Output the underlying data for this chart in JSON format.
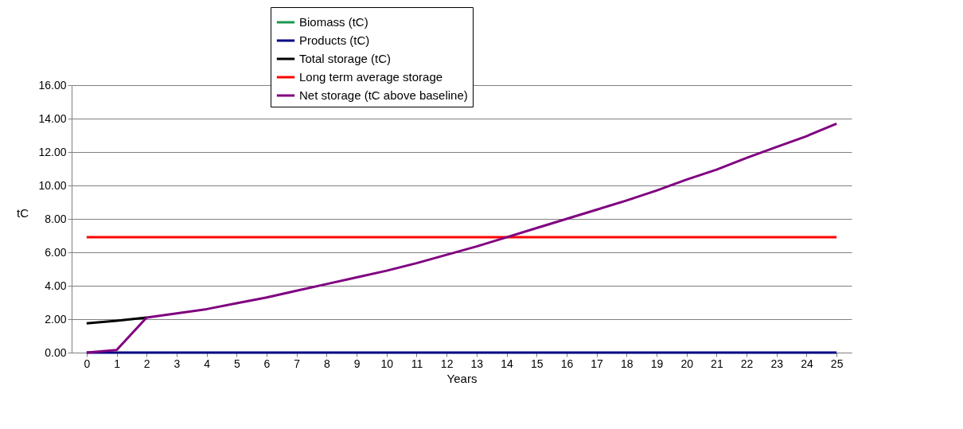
{
  "chart_data": {
    "type": "line",
    "xlabel": "Years",
    "ylabel": "tC",
    "x": [
      0,
      1,
      2,
      3,
      4,
      5,
      6,
      7,
      8,
      9,
      10,
      11,
      12,
      13,
      14,
      15,
      16,
      17,
      18,
      19,
      20,
      21,
      22,
      23,
      24,
      25
    ],
    "series": [
      {
        "name": "Biomass (tC)",
        "color": "#1a9850",
        "values": [
          null,
          null,
          null,
          null,
          null,
          null,
          null,
          null,
          null,
          null,
          null,
          null,
          null,
          null,
          null,
          null,
          null,
          null,
          null,
          null,
          null,
          null,
          null,
          null,
          null,
          null
        ]
      },
      {
        "name": "Products (tC)",
        "color": "#000080",
        "values": [
          0,
          0,
          0,
          0,
          0,
          0,
          0,
          0,
          0,
          0,
          0,
          0,
          0,
          0,
          0,
          0,
          0,
          0,
          0,
          0,
          0,
          0,
          0,
          0,
          0,
          0
        ]
      },
      {
        "name": "Total storage (tC)",
        "color": "#000000",
        "values": [
          1.75,
          1.9,
          2.1,
          null,
          null,
          null,
          null,
          null,
          null,
          null,
          null,
          null,
          null,
          null,
          null,
          null,
          null,
          null,
          null,
          null,
          null,
          null,
          null,
          null,
          null,
          null
        ]
      },
      {
        "name": "Long term average storage",
        "color": "#ff0000",
        "values": [
          6.9,
          6.9,
          6.9,
          6.9,
          6.9,
          6.9,
          6.9,
          6.9,
          6.9,
          6.9,
          6.9,
          6.9,
          6.9,
          6.9,
          6.9,
          6.9,
          6.9,
          6.9,
          6.9,
          6.9,
          6.9,
          6.9,
          6.9,
          6.9,
          6.9,
          6.9
        ]
      },
      {
        "name": "Net storage (tC above baseline)",
        "color": "#800080",
        "values": [
          0,
          0.15,
          2.1,
          2.35,
          2.6,
          2.95,
          3.3,
          3.7,
          4.1,
          4.5,
          4.9,
          5.35,
          5.85,
          6.35,
          6.9,
          7.45,
          8.0,
          8.55,
          9.1,
          9.7,
          10.35,
          10.95,
          11.65,
          12.3,
          12.95,
          13.7
        ]
      }
    ],
    "xlim": [
      -0.5,
      25.5
    ],
    "xticks": [
      0,
      1,
      2,
      3,
      4,
      5,
      6,
      7,
      8,
      9,
      10,
      11,
      12,
      13,
      14,
      15,
      16,
      17,
      18,
      19,
      20,
      21,
      22,
      23,
      24,
      25
    ],
    "ylim": [
      0,
      16
    ],
    "yticks": [
      {
        "value": 0,
        "label": "0.00"
      },
      {
        "value": 2,
        "label": "2.00"
      },
      {
        "value": 4,
        "label": "4.00"
      },
      {
        "value": 6,
        "label": "6.00"
      },
      {
        "value": 8,
        "label": "8.00"
      },
      {
        "value": 10,
        "label": "10.00"
      },
      {
        "value": 12,
        "label": "12.00"
      },
      {
        "value": 14,
        "label": "14.00"
      },
      {
        "value": 16,
        "label": "16.00"
      }
    ],
    "grid": "y",
    "legend": "top",
    "marker": "none",
    "line_style": "solid"
  }
}
